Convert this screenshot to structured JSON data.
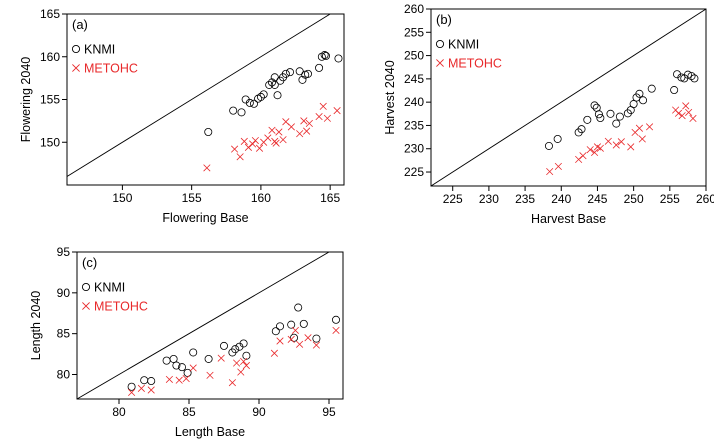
{
  "colors": {
    "knmi": "#000000",
    "metohc": "#e8282a"
  },
  "chart_data": [
    {
      "type": "scatter",
      "panel_label": "(a)",
      "xlabel": "Flowering  Base",
      "ylabel": "Flowering  2040",
      "xlim": [
        146,
        166
      ],
      "ylim": [
        145,
        165
      ],
      "xticks": [
        150,
        155,
        160,
        165
      ],
      "yticks": [
        150,
        155,
        160,
        165
      ],
      "xtick_labels": [
        "150",
        "155",
        "160",
        "165"
      ],
      "ytick_labels": [
        "150",
        "155",
        "160",
        "165"
      ],
      "reference_line": "1:1",
      "legend_position": "top-left",
      "series": [
        {
          "name": "KNMI",
          "marker": "circle",
          "color": "#000000",
          "x": [
            156.2,
            158,
            158.6,
            158.9,
            159.2,
            159.5,
            159.8,
            160,
            160.2,
            160.6,
            160.8,
            161,
            161,
            161.2,
            161.4,
            161.6,
            161.8,
            162.1,
            162.8,
            163,
            163.2,
            163.4,
            164.2,
            164.4,
            164.6,
            164.7,
            165.6
          ],
          "y": [
            151.2,
            153.7,
            153.5,
            155,
            154.6,
            154.5,
            155.1,
            155.3,
            155.6,
            156.7,
            157,
            157.6,
            156.7,
            155.5,
            157.2,
            157.6,
            158,
            158.2,
            158.3,
            157.3,
            157.9,
            158,
            158.7,
            160,
            160.2,
            160.1,
            159.8
          ]
        },
        {
          "name": "METOHC",
          "marker": "cross",
          "color": "#e8282a",
          "x": [
            156.1,
            158.1,
            158.5,
            158.8,
            159.1,
            159.4,
            159.6,
            159.9,
            160.2,
            160.5,
            160.8,
            161,
            161.1,
            161.3,
            161.6,
            161.8,
            162.2,
            162.8,
            163.1,
            163.3,
            163.5,
            164.2,
            164.5,
            164.8,
            165.5
          ],
          "y": [
            147,
            149.2,
            148.3,
            150.1,
            149.4,
            149.8,
            150.2,
            149.3,
            150,
            150.5,
            151.4,
            150.1,
            149.9,
            151.2,
            150.3,
            152.4,
            151.8,
            151,
            152.5,
            151.3,
            152.2,
            153,
            154.2,
            152.8,
            153.7
          ]
        }
      ]
    },
    {
      "type": "scatter",
      "panel_label": "(b)",
      "xlabel": "Harvest  Base",
      "ylabel": "Harvest  2040",
      "xlim": [
        222,
        260
      ],
      "ylim": [
        222,
        260
      ],
      "xticks": [
        225,
        230,
        235,
        240,
        245,
        250,
        255,
        260
      ],
      "yticks": [
        225,
        230,
        235,
        240,
        245,
        250,
        255,
        260
      ],
      "xtick_labels": [
        "225",
        "230",
        "235",
        "240",
        "245",
        "250",
        "255",
        "260"
      ],
      "ytick_labels": [
        "225",
        "230",
        "235",
        "240",
        "245",
        "250",
        "255",
        "260"
      ],
      "reference_line": "1:1",
      "legend_position": "top-left",
      "series": [
        {
          "name": "KNMI",
          "marker": "circle",
          "color": "#000000",
          "x": [
            238.3,
            239.5,
            242.4,
            242.8,
            243.6,
            244.6,
            244.9,
            245.2,
            245.4,
            246.8,
            247.6,
            248.1,
            249.2,
            249.6,
            250,
            250.4,
            250.8,
            251.3,
            252.5,
            255.6,
            256,
            256.6,
            257,
            257.5,
            258,
            258.4
          ],
          "y": [
            230.6,
            232.1,
            233.5,
            234.2,
            236.2,
            239.3,
            238.8,
            237.4,
            236.6,
            237.5,
            235.4,
            236.9,
            237.6,
            238.3,
            239.6,
            241,
            241.8,
            240.4,
            242.9,
            242.6,
            246,
            245.3,
            245.1,
            245.9,
            245.6,
            245.1
          ]
        },
        {
          "name": "METOHC",
          "marker": "cross",
          "color": "#e8282a",
          "x": [
            238.4,
            239.6,
            242.4,
            243,
            244,
            244.6,
            245,
            245.4,
            246.5,
            247.6,
            248.3,
            249.6,
            250.2,
            250.8,
            251.2,
            252.2,
            255.8,
            256.2,
            256.7,
            257.2,
            257.6,
            258.2
          ],
          "y": [
            225.1,
            226.2,
            227.7,
            228.5,
            229.8,
            229.2,
            230.4,
            230.1,
            231.6,
            230.8,
            231.5,
            230.4,
            233.5,
            234.4,
            232.1,
            234.7,
            238.3,
            237.6,
            237.1,
            239.2,
            237.8,
            236.5
          ]
        }
      ]
    },
    {
      "type": "scatter",
      "panel_label": "(c)",
      "xlabel": "Length  Base",
      "ylabel": "Length  2040",
      "xlim": [
        77,
        96
      ],
      "ylim": [
        77,
        95
      ],
      "xticks": [
        80,
        85,
        90,
        95
      ],
      "yticks": [
        80,
        85,
        90,
        95
      ],
      "xtick_labels": [
        "80",
        "85",
        "90",
        "95"
      ],
      "ytick_labels": [
        "80",
        "85",
        "90",
        "95"
      ],
      "reference_line": "1:1",
      "legend_position": "top-left",
      "series": [
        {
          "name": "KNMI",
          "marker": "circle",
          "color": "#000000",
          "x": [
            80.9,
            81.8,
            82.3,
            83.4,
            83.9,
            84.1,
            84.5,
            84.9,
            85.3,
            86.4,
            87.5,
            88.1,
            88.3,
            88.6,
            88.9,
            89.1,
            91.2,
            91.5,
            92.3,
            92.5,
            92.8,
            93.2,
            94.1,
            95.5
          ],
          "y": [
            78.5,
            79.3,
            79.2,
            81.7,
            81.9,
            81.1,
            80.9,
            80.2,
            82.7,
            81.9,
            83.5,
            82.7,
            83.1,
            83.4,
            83.8,
            82.3,
            85.3,
            85.9,
            86.1,
            84.5,
            88.2,
            86.2,
            84.4,
            86.7
          ]
        },
        {
          "name": "METOHC",
          "marker": "cross",
          "color": "#e8282a",
          "x": [
            80.9,
            81.6,
            82.3,
            83.6,
            84.3,
            84.8,
            85.3,
            86.5,
            87.3,
            88.1,
            88.4,
            88.7,
            88.9,
            89.1,
            91.1,
            91.5,
            92.3,
            92.6,
            92.9,
            93.5,
            94.1,
            95.5
          ],
          "y": [
            77.8,
            78.3,
            78.1,
            79.4,
            79.3,
            79.5,
            80.8,
            79.9,
            82,
            79,
            81.4,
            80.3,
            81.6,
            81.1,
            82.6,
            84.1,
            84.3,
            85.4,
            83.7,
            84.5,
            83.6,
            85.4
          ]
        }
      ]
    }
  ]
}
